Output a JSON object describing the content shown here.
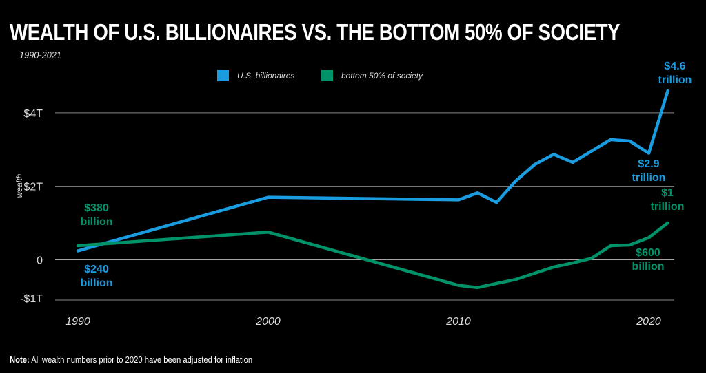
{
  "title": "WEALTH OF U.S. BILLIONAIRES VS. THE BOTTOM 50% OF SOCIETY",
  "subtitle": "1990-2021",
  "note_label": "Note:",
  "note_text": " All wealth numbers prior to 2020 have been adjusted for inflation",
  "chart_data": {
    "type": "line",
    "title": "WEALTH OF U.S. BILLIONAIRES VS. THE BOTTOM 50% OF SOCIETY",
    "subtitle": "1990-2021",
    "ylabel": "wealth",
    "xlabel": "",
    "xlim": [
      1990,
      2021
    ],
    "ylim": [
      -1.1,
      4.6
    ],
    "x_ticks": [
      {
        "v": 1990,
        "label": "1990"
      },
      {
        "v": 2000,
        "label": "2000"
      },
      {
        "v": 2010,
        "label": "2010"
      },
      {
        "v": 2020,
        "label": "2020"
      }
    ],
    "y_ticks": [
      {
        "v": 4,
        "label": "$4T"
      },
      {
        "v": 2,
        "label": "$2T"
      },
      {
        "v": 0,
        "label": "0"
      },
      {
        "v": -1,
        "label": "-$1T"
      }
    ],
    "grid": true,
    "legend": "top-center",
    "series": [
      {
        "name": "U.S. billionaires",
        "color": "#1a9de0",
        "x": [
          1990,
          2000,
          2010,
          2011,
          2012,
          2013,
          2014,
          2015,
          2016,
          2017,
          2018,
          2019,
          2020,
          2021
        ],
        "values": [
          0.24,
          1.7,
          1.63,
          1.82,
          1.56,
          2.14,
          2.59,
          2.87,
          2.65,
          2.96,
          3.27,
          3.23,
          2.9,
          4.6
        ]
      },
      {
        "name": "bottom 50% of society",
        "color": "#00936a",
        "x": [
          1990,
          2000,
          2010,
          2011,
          2012,
          2013,
          2014,
          2015,
          2016,
          2017,
          2018,
          2019,
          2020,
          2021
        ],
        "values": [
          0.38,
          0.75,
          -0.7,
          -0.76,
          -0.65,
          -0.54,
          -0.37,
          -0.2,
          -0.09,
          0.04,
          0.38,
          0.4,
          0.6,
          1.0
        ]
      }
    ],
    "annotations": [
      {
        "series": 0,
        "lines": [
          "$240",
          "billion"
        ]
      },
      {
        "series": 0,
        "lines": [
          "$2.9",
          "trillion"
        ]
      },
      {
        "series": 0,
        "lines": [
          "$4.6",
          "trillion"
        ]
      },
      {
        "series": 1,
        "lines": [
          "$380",
          "billion"
        ]
      },
      {
        "series": 1,
        "lines": [
          "$600",
          "billion"
        ]
      },
      {
        "series": 1,
        "lines": [
          "$1",
          "trillion"
        ]
      }
    ]
  }
}
